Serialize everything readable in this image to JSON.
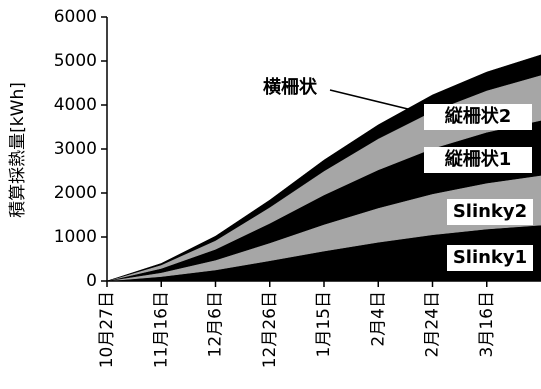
{
  "chart_data": {
    "type": "stacked-area",
    "y_label": "積算採熱量[kWh]",
    "categories": [
      "10月27日",
      "11月16日",
      "12月6日",
      "12月26日",
      "1月15日",
      "2月4日",
      "2月24日",
      "3月16日",
      null
    ],
    "series": [
      {
        "name": "Slinky1",
        "color": "#000000",
        "values": [
          0,
          100,
          250,
          460,
          680,
          880,
          1050,
          1180,
          1270
        ]
      },
      {
        "name": "Slinky2",
        "color": "#a6a6a6",
        "values": [
          0,
          90,
          225,
          405,
          605,
          780,
          930,
          1045,
          1130
        ]
      },
      {
        "name": "縦柵状1",
        "color": "#000000",
        "values": [
          0,
          95,
          245,
          445,
          670,
          865,
          1030,
          1155,
          1250
        ]
      },
      {
        "name": "縦柵状2",
        "color": "#a6a6a6",
        "values": [
          0,
          80,
          200,
          365,
          545,
          710,
          845,
          950,
          1030
        ]
      },
      {
        "name": "横柵状",
        "color": "#000000",
        "values": [
          0,
          35,
          100,
          165,
          250,
          315,
          375,
          420,
          460
        ]
      }
    ],
    "ylim": [
      0,
      6000
    ],
    "yticks": [
      0,
      1000,
      2000,
      3000,
      4000,
      5000,
      6000
    ]
  }
}
